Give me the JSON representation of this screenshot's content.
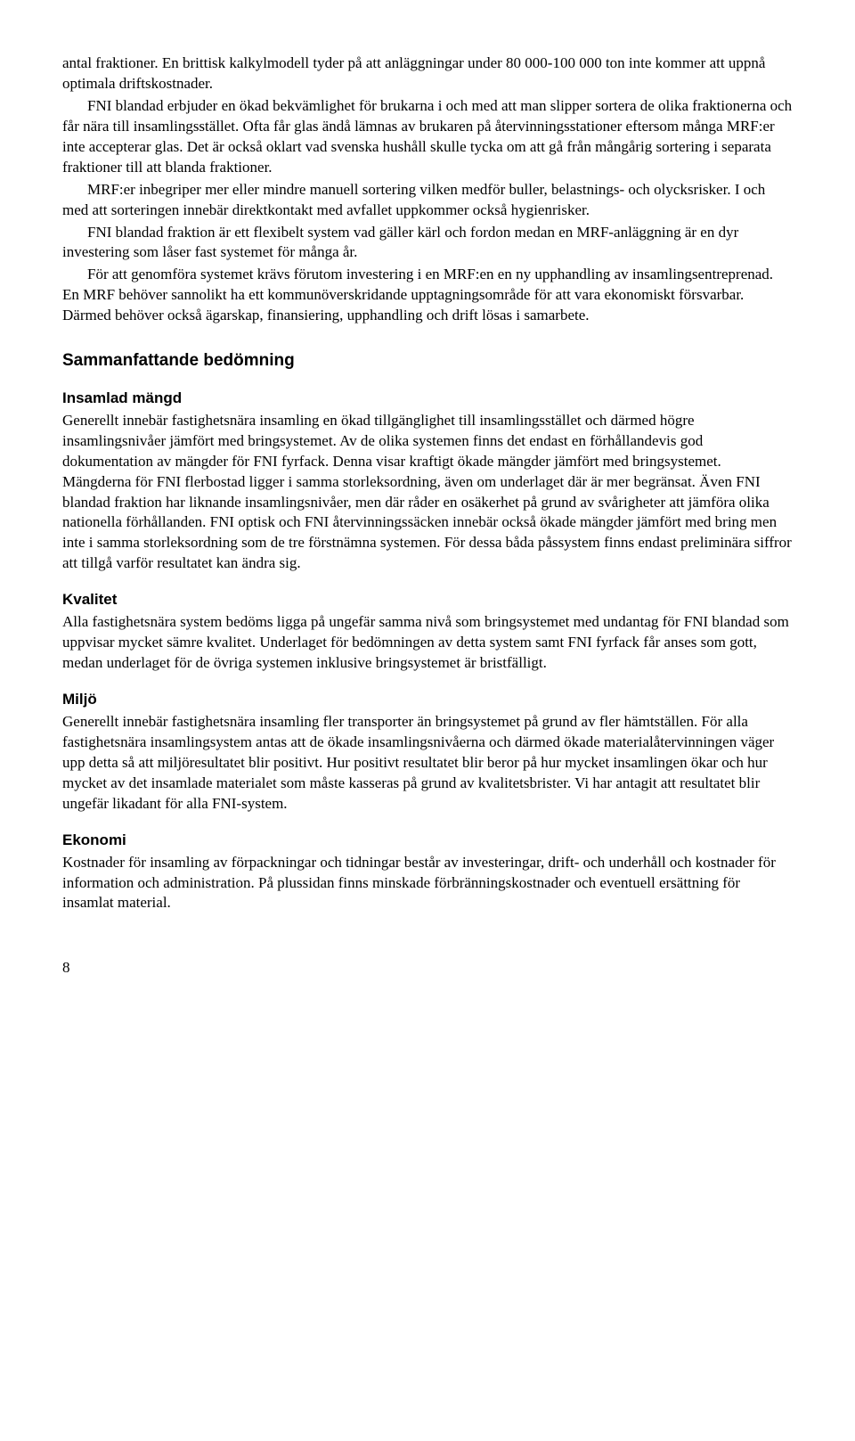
{
  "intro": {
    "p1": "antal fraktioner. En brittisk kalkylmodell tyder på att anläggningar under 80 000-100 000 ton inte kommer att uppnå optimala driftskostnader.",
    "p2": "FNI blandad erbjuder en ökad bekvämlighet för brukarna i och med att man slipper sortera de olika fraktionerna och får nära till insamlingsstället. Ofta får glas ändå lämnas av brukaren på återvinningsstationer eftersom många MRF:er inte accepterar glas. Det är också oklart vad svenska hushåll skulle tycka om att gå från mångårig sortering i separata fraktioner till att blanda fraktioner.",
    "p3": "MRF:er inbegriper mer eller mindre manuell sortering vilken medför buller, belastnings- och olycksrisker. I och med att sorteringen innebär direktkontakt med avfallet uppkommer också hygienrisker.",
    "p4": "FNI blandad fraktion är ett flexibelt system vad gäller kärl och fordon medan en MRF-anläggning är en dyr investering som låser fast systemet för många år.",
    "p5": "För att genomföra systemet krävs förutom investering i en MRF:en en ny upphandling av insamlingsentreprenad. En MRF behöver sannolikt ha ett kommunöverskridande upptagningsområde för att vara ekonomiskt försvarbar. Därmed behöver också ägarskap, finansiering, upphandling och drift lösas i samarbete."
  },
  "summary": {
    "heading": "Sammanfattande bedömning",
    "insamlad": {
      "heading": "Insamlad mängd",
      "body": "Generellt innebär fastighetsnära insamling en ökad tillgänglighet till insamlingsstället och därmed högre insamlingsnivåer jämfört med bringsystemet. Av de olika systemen finns det endast en förhållandevis god dokumentation av mängder för FNI fyrfack. Denna visar kraftigt ökade mängder jämfört med bringsystemet. Mängderna för FNI flerbostad ligger i samma storleksordning, även om underlaget där är mer begränsat. Även FNI blandad fraktion har liknande insamlingsnivåer, men där råder en osäkerhet på grund av svårigheter att jämföra olika nationella förhållanden. FNI optisk och FNI återvinningssäcken innebär också ökade mängder jämfört med bring men inte i samma storleksordning som de tre förstnämna systemen. För dessa båda påssystem finns endast preliminära siffror att tillgå varför resultatet kan ändra sig."
    },
    "kvalitet": {
      "heading": "Kvalitet",
      "body": "Alla fastighetsnära system bedöms ligga på ungefär samma nivå som bringsystemet med undantag för FNI blandad som uppvisar mycket sämre kvalitet. Underlaget för bedömningen av detta system samt FNI fyrfack får anses som gott, medan underlaget för de övriga systemen inklusive bringsystemet är bristfälligt."
    },
    "miljo": {
      "heading": "Miljö",
      "body": "Generellt innebär fastighetsnära insamling fler transporter än bringsystemet på grund av fler hämtställen. För alla fastighetsnära insamlingsystem antas att de ökade insamlingsnivåerna och därmed ökade materialåtervinningen väger upp detta så att miljöresultatet blir positivt. Hur positivt resultatet blir beror på hur mycket insamlingen ökar och hur mycket av det insamlade materialet som måste kasseras på grund av kvalitetsbrister. Vi har antagit att resultatet blir ungefär likadant för alla FNI-system."
    },
    "ekonomi": {
      "heading": "Ekonomi",
      "body": "Kostnader för insamling av förpackningar och tidningar består av investeringar, drift- och underhåll och kostnader för information och administration. På plussidan finns minskade förbränningskostnader och eventuell ersättning för insamlat material."
    }
  },
  "page_number": "8"
}
